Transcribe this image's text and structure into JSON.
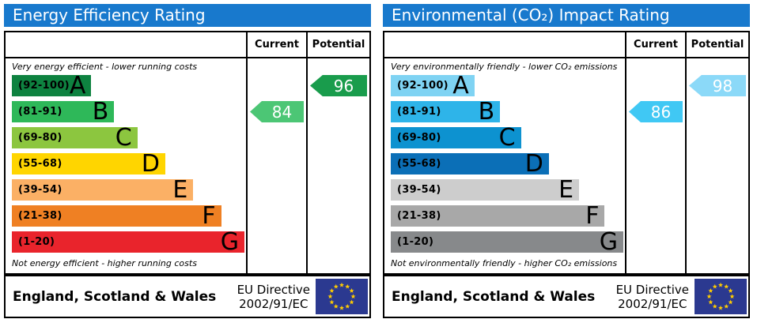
{
  "theme": {
    "header_bg": "#1879cd",
    "border": "#000000",
    "flag_bg": "#2b3990",
    "flag_star": "#ffcc00"
  },
  "panels": [
    {
      "title": "Energy Efficiency Rating",
      "columns": {
        "current": "Current",
        "potential": "Potential"
      },
      "top_caption": "Very energy efficient - lower running costs",
      "bottom_caption": "Not energy efficient - higher running costs",
      "bands": [
        {
          "letter": "A",
          "range": "(92-100)",
          "color": "#0e8240",
          "width_pct": 34
        },
        {
          "letter": "B",
          "range": "(81-91)",
          "color": "#2eb859",
          "width_pct": 44
        },
        {
          "letter": "C",
          "range": "(69-80)",
          "color": "#8cc63f",
          "width_pct": 54
        },
        {
          "letter": "D",
          "range": "(55-68)",
          "color": "#ffd500",
          "width_pct": 66
        },
        {
          "letter": "E",
          "range": "(39-54)",
          "color": "#fbb065",
          "width_pct": 78
        },
        {
          "letter": "F",
          "range": "(21-38)",
          "color": "#ef8023",
          "width_pct": 90
        },
        {
          "letter": "G",
          "range": "(1-20)",
          "color": "#e9242c",
          "width_pct": 100
        }
      ],
      "current": {
        "value": "84",
        "band_index": 1,
        "color": "#4cc675"
      },
      "potential": {
        "value": "96",
        "band_index": 0,
        "color": "#199c4c"
      },
      "footer": {
        "region": "England, Scotland & Wales",
        "directive_line1": "EU Directive",
        "directive_line2": "2002/91/EC"
      }
    },
    {
      "title": "Environmental (CO₂) Impact Rating",
      "columns": {
        "current": "Current",
        "potential": "Potential"
      },
      "top_caption": "Very environmentally friendly - lower CO₂ emissions",
      "bottom_caption": "Not environmentally friendly - higher CO₂ emissions",
      "bands": [
        {
          "letter": "A",
          "range": "(92-100)",
          "color": "#7fd3f3",
          "width_pct": 36
        },
        {
          "letter": "B",
          "range": "(81-91)",
          "color": "#2eb4e9",
          "width_pct": 47
        },
        {
          "letter": "C",
          "range": "(69-80)",
          "color": "#0d92d0",
          "width_pct": 56
        },
        {
          "letter": "D",
          "range": "(55-68)",
          "color": "#0b6fb7",
          "width_pct": 68
        },
        {
          "letter": "E",
          "range": "(39-54)",
          "color": "#cdcdcd",
          "width_pct": 81
        },
        {
          "letter": "F",
          "range": "(21-38)",
          "color": "#a8a8a8",
          "width_pct": 92
        },
        {
          "letter": "G",
          "range": "(1-20)",
          "color": "#87898b",
          "width_pct": 100
        }
      ],
      "current": {
        "value": "86",
        "band_index": 1,
        "color": "#40c8f4"
      },
      "potential": {
        "value": "98",
        "band_index": 0,
        "color": "#8bd9f8"
      },
      "footer": {
        "region": "England, Scotland & Wales",
        "directive_line1": "EU Directive",
        "directive_line2": "2002/91/EC"
      }
    }
  ],
  "chart_data": [
    {
      "type": "bar",
      "title": "Energy Efficiency Rating",
      "bands": [
        {
          "label": "A",
          "range": [
            92,
            100
          ]
        },
        {
          "label": "B",
          "range": [
            81,
            91
          ]
        },
        {
          "label": "C",
          "range": [
            69,
            80
          ]
        },
        {
          "label": "D",
          "range": [
            55,
            68
          ]
        },
        {
          "label": "E",
          "range": [
            39,
            54
          ]
        },
        {
          "label": "F",
          "range": [
            21,
            38
          ]
        },
        {
          "label": "G",
          "range": [
            1,
            20
          ]
        }
      ],
      "current": 84,
      "current_band": "B",
      "potential": 96,
      "potential_band": "A",
      "top_caption": "Very energy efficient - lower running costs",
      "bottom_caption": "Not energy efficient - higher running costs",
      "footer": "England, Scotland & Wales",
      "directive": "EU Directive 2002/91/EC"
    },
    {
      "type": "bar",
      "title": "Environmental (CO₂) Impact Rating",
      "bands": [
        {
          "label": "A",
          "range": [
            92,
            100
          ]
        },
        {
          "label": "B",
          "range": [
            81,
            91
          ]
        },
        {
          "label": "C",
          "range": [
            69,
            80
          ]
        },
        {
          "label": "D",
          "range": [
            55,
            68
          ]
        },
        {
          "label": "E",
          "range": [
            39,
            54
          ]
        },
        {
          "label": "F",
          "range": [
            21,
            38
          ]
        },
        {
          "label": "G",
          "range": [
            1,
            20
          ]
        }
      ],
      "current": 86,
      "current_band": "B",
      "potential": 98,
      "potential_band": "A",
      "top_caption": "Very environmentally friendly - lower CO₂ emissions",
      "bottom_caption": "Not environmentally friendly - higher CO₂ emissions",
      "footer": "England, Scotland & Wales",
      "directive": "EU Directive 2002/91/EC"
    }
  ]
}
